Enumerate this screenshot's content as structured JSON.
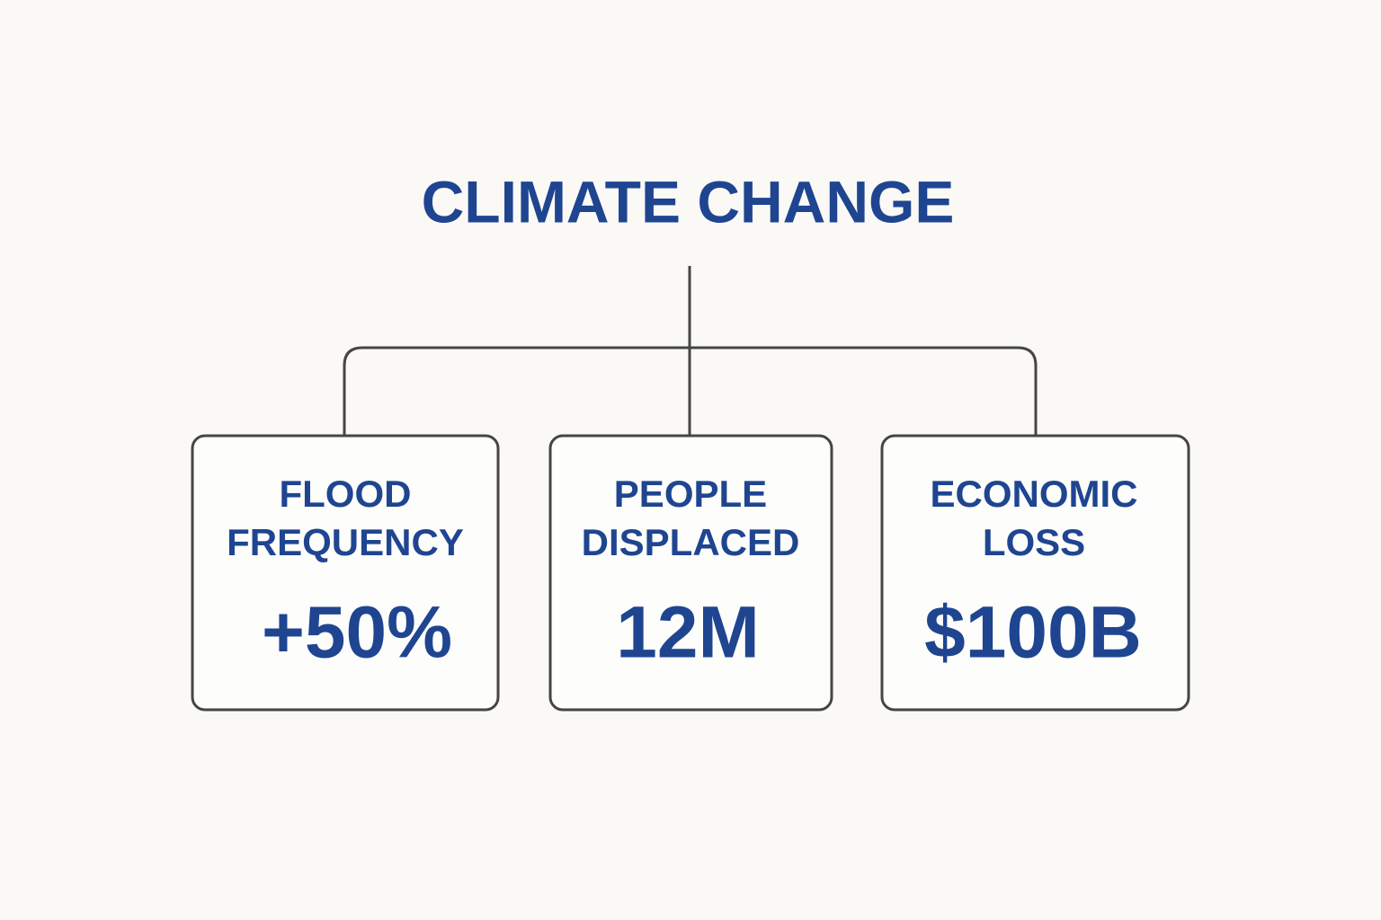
{
  "title": "CLIMATE CHANGE",
  "nodes": [
    {
      "label": [
        "FLOOD",
        "FREQUENCY"
      ],
      "value": "+50%"
    },
    {
      "label": [
        "PEOPLE",
        "DISPLACED"
      ],
      "value": "12M"
    },
    {
      "label": [
        "ECONOMIC",
        "LOSS"
      ],
      "value": "$100B"
    }
  ]
}
